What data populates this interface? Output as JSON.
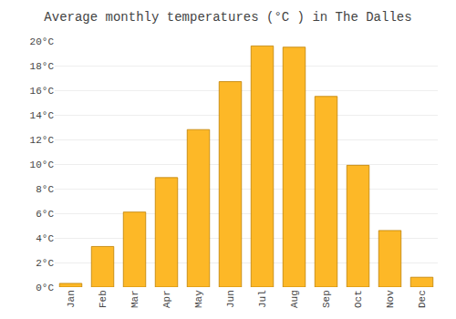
{
  "chart_data": {
    "type": "bar",
    "title": "Average monthly temperatures (°C ) in The Dalles",
    "categories": [
      "Jan",
      "Feb",
      "Mar",
      "Apr",
      "May",
      "Jun",
      "Jul",
      "Aug",
      "Sep",
      "Oct",
      "Nov",
      "Dec"
    ],
    "values": [
      0.3,
      3.3,
      6.1,
      8.9,
      12.8,
      16.7,
      19.6,
      19.5,
      15.5,
      9.9,
      4.6,
      0.8
    ],
    "color": "#FDB827",
    "ylim": [
      0,
      20
    ],
    "yticks": [
      {
        "value": 0,
        "label": "0°C"
      },
      {
        "value": 2,
        "label": "2°C"
      },
      {
        "value": 4,
        "label": "4°C"
      },
      {
        "value": 6,
        "label": "6°C"
      },
      {
        "value": 8,
        "label": "8°C"
      },
      {
        "value": 10,
        "label": "10°C"
      },
      {
        "value": 12,
        "label": "12°C"
      },
      {
        "value": 14,
        "label": "14°C"
      },
      {
        "value": 16,
        "label": "16°C"
      },
      {
        "value": 18,
        "label": "18°C"
      },
      {
        "value": 20,
        "label": "20°C"
      }
    ],
    "grid": true
  }
}
